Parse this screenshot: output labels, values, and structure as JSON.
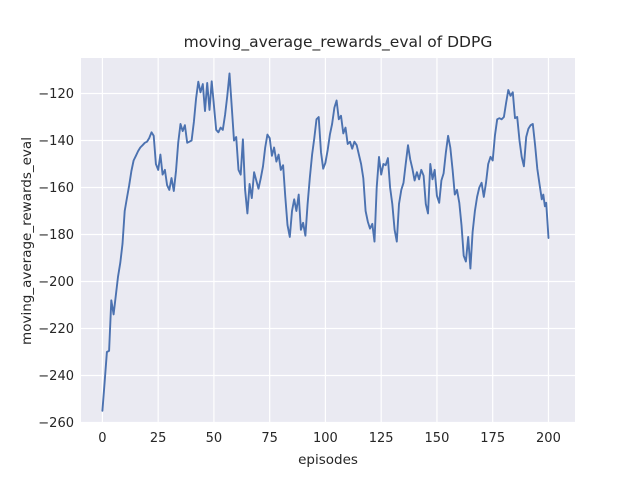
{
  "figure": {
    "background": "#ffffff"
  },
  "chart_data": {
    "type": "line",
    "title": "moving_average_rewards_eval of DDPG",
    "xlabel": "episodes",
    "ylabel": "moving_average_rewards_eval",
    "xlim": [
      -9.6,
      211.9
    ],
    "ylim": [
      -260.2,
      -104.9
    ],
    "xticks": [
      0,
      25,
      50,
      75,
      100,
      125,
      150,
      175,
      200
    ],
    "yticks": [
      -120,
      -140,
      -160,
      -180,
      -200,
      -220,
      -240,
      -260
    ],
    "grid": true,
    "legend_position": "none",
    "style": {
      "axes_background": "#eaeaf2",
      "grid_color": "#ffffff",
      "line_color": "#4c72b0",
      "text_color": "#262626",
      "line_width": 1.9,
      "grid_width": 1.2
    },
    "series": [
      {
        "name": "moving_average_rewards_eval",
        "points": [
          [
            0,
            -255
          ],
          [
            1,
            -243
          ],
          [
            2,
            -230
          ],
          [
            3,
            -229.5
          ],
          [
            4,
            -208
          ],
          [
            5,
            -214
          ],
          [
            6,
            -206
          ],
          [
            7,
            -198
          ],
          [
            8,
            -192
          ],
          [
            9,
            -184
          ],
          [
            10,
            -170
          ],
          [
            11,
            -164.5
          ],
          [
            12,
            -159
          ],
          [
            13,
            -153
          ],
          [
            14,
            -148.5
          ],
          [
            15,
            -146.5
          ],
          [
            16,
            -144.5
          ],
          [
            17,
            -143
          ],
          [
            18,
            -142
          ],
          [
            19,
            -141
          ],
          [
            20,
            -140.5
          ],
          [
            21,
            -139
          ],
          [
            22,
            -136.5
          ],
          [
            23,
            -138
          ],
          [
            24,
            -150
          ],
          [
            25,
            -152.5
          ],
          [
            26,
            -146
          ],
          [
            27,
            -154.5
          ],
          [
            28,
            -152.5
          ],
          [
            29,
            -159
          ],
          [
            30,
            -161
          ],
          [
            31,
            -156
          ],
          [
            32,
            -161.5
          ],
          [
            33,
            -153
          ],
          [
            34,
            -141
          ],
          [
            35,
            -133
          ],
          [
            36,
            -136
          ],
          [
            37,
            -133.5
          ],
          [
            38,
            -141
          ],
          [
            39,
            -140.5
          ],
          [
            40,
            -140
          ],
          [
            41,
            -132
          ],
          [
            42,
            -122
          ],
          [
            43,
            -115
          ],
          [
            44,
            -119.5
          ],
          [
            45,
            -116
          ],
          [
            46,
            -127.5
          ],
          [
            47,
            -115.5
          ],
          [
            48,
            -127
          ],
          [
            49,
            -114.8
          ],
          [
            50,
            -125
          ],
          [
            51,
            -135.5
          ],
          [
            52,
            -136.5
          ],
          [
            53,
            -134.5
          ],
          [
            54,
            -135.5
          ],
          [
            55,
            -129
          ],
          [
            56,
            -121
          ],
          [
            57,
            -111.5
          ],
          [
            58,
            -126
          ],
          [
            59,
            -140
          ],
          [
            60,
            -138.5
          ],
          [
            61,
            -152.5
          ],
          [
            62,
            -154.5
          ],
          [
            63,
            -139.5
          ],
          [
            64,
            -161
          ],
          [
            65,
            -171
          ],
          [
            66,
            -158.5
          ],
          [
            67,
            -164.5
          ],
          [
            68,
            -153.5
          ],
          [
            69,
            -157
          ],
          [
            70,
            -160.5
          ],
          [
            71,
            -156
          ],
          [
            72,
            -151
          ],
          [
            73,
            -143
          ],
          [
            74,
            -137.5
          ],
          [
            75,
            -139
          ],
          [
            76,
            -146.5
          ],
          [
            77,
            -143
          ],
          [
            78,
            -149
          ],
          [
            79,
            -146
          ],
          [
            80,
            -152.5
          ],
          [
            81,
            -150.5
          ],
          [
            82,
            -164
          ],
          [
            83,
            -176
          ],
          [
            84,
            -181
          ],
          [
            85,
            -170
          ],
          [
            86,
            -165
          ],
          [
            87,
            -170
          ],
          [
            88,
            -163
          ],
          [
            89,
            -178
          ],
          [
            90,
            -175
          ],
          [
            91,
            -180.5
          ],
          [
            92,
            -167
          ],
          [
            93,
            -156
          ],
          [
            94,
            -146
          ],
          [
            95,
            -139
          ],
          [
            96,
            -131
          ],
          [
            97,
            -130
          ],
          [
            98,
            -145
          ],
          [
            99,
            -152
          ],
          [
            100,
            -149.5
          ],
          [
            101,
            -144
          ],
          [
            102,
            -137.5
          ],
          [
            103,
            -133
          ],
          [
            104,
            -126
          ],
          [
            105,
            -123
          ],
          [
            106,
            -131
          ],
          [
            107,
            -129.5
          ],
          [
            108,
            -137
          ],
          [
            109,
            -134.5
          ],
          [
            110,
            -141.5
          ],
          [
            111,
            -140.5
          ],
          [
            112,
            -143.5
          ],
          [
            113,
            -140.5
          ],
          [
            114,
            -142
          ],
          [
            115,
            -146
          ],
          [
            116,
            -150
          ],
          [
            117,
            -156
          ],
          [
            118,
            -170
          ],
          [
            119,
            -174.5
          ],
          [
            120,
            -177.5
          ],
          [
            121,
            -175.5
          ],
          [
            122,
            -183
          ],
          [
            123,
            -160
          ],
          [
            124,
            -147
          ],
          [
            125,
            -154.5
          ],
          [
            126,
            -150
          ],
          [
            127,
            -150.5
          ],
          [
            128,
            -147.5
          ],
          [
            129,
            -160
          ],
          [
            130,
            -167
          ],
          [
            131,
            -178
          ],
          [
            132,
            -183
          ],
          [
            133,
            -167
          ],
          [
            134,
            -161
          ],
          [
            135,
            -158
          ],
          [
            136,
            -150
          ],
          [
            137,
            -142
          ],
          [
            138,
            -148
          ],
          [
            139,
            -152
          ],
          [
            140,
            -157
          ],
          [
            141,
            -153.5
          ],
          [
            142,
            -156.5
          ],
          [
            143,
            -152.5
          ],
          [
            144,
            -155
          ],
          [
            145,
            -167
          ],
          [
            146,
            -171
          ],
          [
            147,
            -150
          ],
          [
            148,
            -156.5
          ],
          [
            149,
            -152.5
          ],
          [
            150,
            -163.5
          ],
          [
            151,
            -166.5
          ],
          [
            152,
            -157
          ],
          [
            153,
            -154
          ],
          [
            154,
            -145
          ],
          [
            155,
            -138
          ],
          [
            156,
            -143
          ],
          [
            157,
            -152.5
          ],
          [
            158,
            -163
          ],
          [
            159,
            -161
          ],
          [
            160,
            -166.5
          ],
          [
            161,
            -176
          ],
          [
            162,
            -189
          ],
          [
            163,
            -191.5
          ],
          [
            164,
            -181
          ],
          [
            165,
            -194.5
          ],
          [
            166,
            -179
          ],
          [
            167,
            -170
          ],
          [
            168,
            -164
          ],
          [
            169,
            -160
          ],
          [
            170,
            -158
          ],
          [
            171,
            -164
          ],
          [
            172,
            -158
          ],
          [
            173,
            -150
          ],
          [
            174,
            -147
          ],
          [
            175,
            -148.5
          ],
          [
            176,
            -138
          ],
          [
            177,
            -131
          ],
          [
            178,
            -130.5
          ],
          [
            179,
            -131
          ],
          [
            180,
            -130
          ],
          [
            181,
            -124
          ],
          [
            182,
            -118.5
          ],
          [
            183,
            -121
          ],
          [
            184,
            -119.5
          ],
          [
            185,
            -130.5
          ],
          [
            186,
            -130
          ],
          [
            187,
            -140
          ],
          [
            188,
            -147
          ],
          [
            189,
            -151
          ],
          [
            190,
            -138.5
          ],
          [
            191,
            -135
          ],
          [
            192,
            -133.5
          ],
          [
            193,
            -133
          ],
          [
            194,
            -142
          ],
          [
            195,
            -152
          ],
          [
            196,
            -158.5
          ],
          [
            197,
            -165
          ],
          [
            197.7,
            -163
          ],
          [
            198.4,
            -168
          ],
          [
            199,
            -166.5
          ],
          [
            200,
            -181.5
          ]
        ]
      }
    ]
  }
}
